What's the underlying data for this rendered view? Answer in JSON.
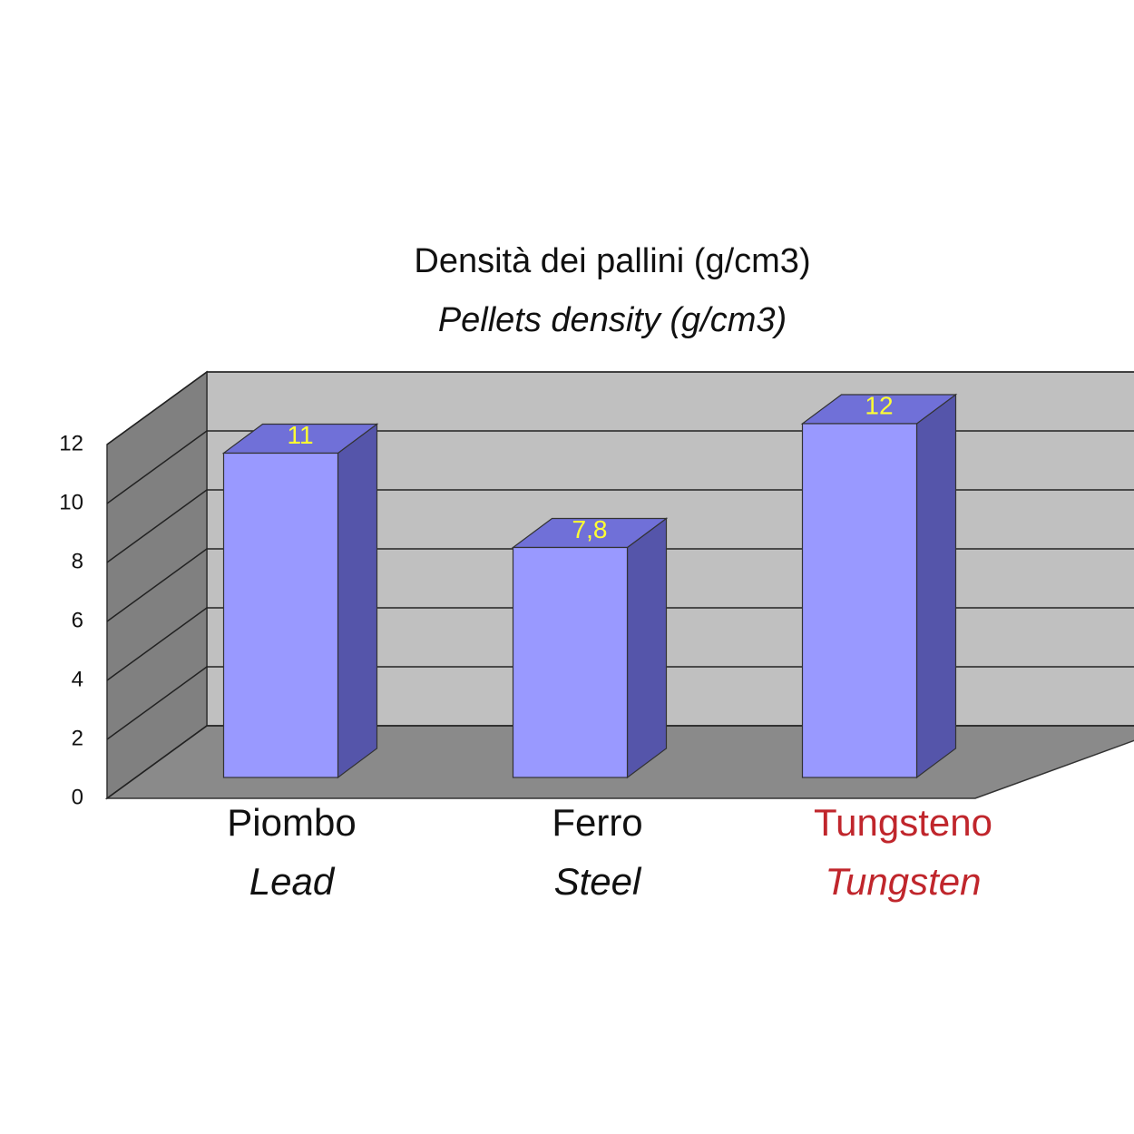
{
  "chart_data": {
    "type": "bar3d",
    "title": "Densità dei pallini (g/cm3)",
    "subtitle": "Pellets density (g/cm3)",
    "categories": [
      [
        "Piombo",
        "Lead"
      ],
      [
        "Ferro",
        "Steel"
      ],
      [
        "Tungsteno",
        "Tungsten"
      ]
    ],
    "category_colors": [
      "#111111",
      "#111111",
      "#c0262c"
    ],
    "values": [
      11,
      7.8,
      12
    ],
    "value_labels": [
      "11",
      "7,8",
      "12"
    ],
    "value_label_color": "#ffff33",
    "color": "#9999ff",
    "ylim": [
      0,
      12
    ],
    "yticks": [
      0,
      2,
      4,
      6,
      8,
      10,
      12
    ],
    "grid": true
  }
}
